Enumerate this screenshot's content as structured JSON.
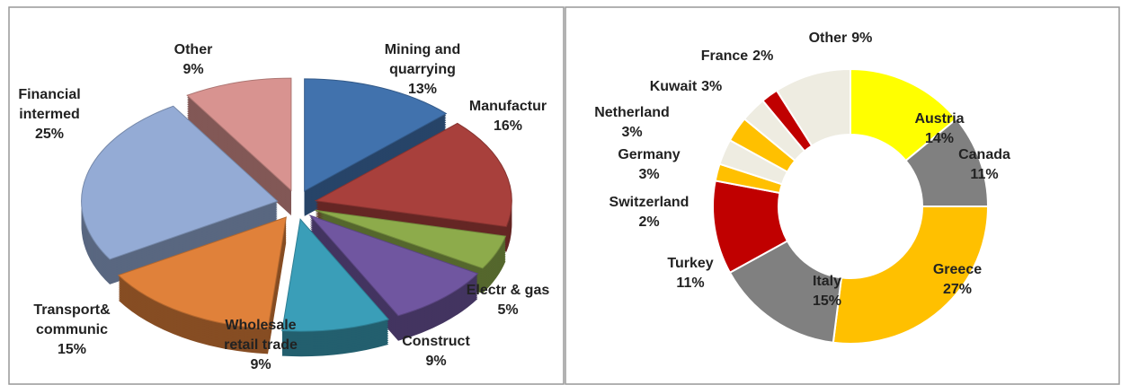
{
  "chart_data": [
    {
      "type": "pie3d",
      "categories": [
        "Mining and quarrying",
        "Manufactur",
        "Electr & gas",
        "Construct",
        "Wholesale retail trade",
        "Transport& communic",
        "Financial intermed",
        "Other"
      ],
      "values": [
        13,
        16,
        5,
        9,
        9,
        15,
        25,
        9
      ],
      "value_labels": [
        "13%",
        "16%",
        "5%",
        "9%",
        "9%",
        "15%",
        "25%",
        "9%"
      ],
      "colors": [
        "#4172ad",
        "#a8403c",
        "#8dab4b",
        "#7056a0",
        "#3a9eb8",
        "#e0813a",
        "#94abd5",
        "#d89390"
      ]
    },
    {
      "type": "doughnut",
      "categories": [
        "Austria",
        "Canada",
        "Greece",
        "Italy",
        "Turkey",
        "Switzerland",
        "Germany",
        "Netherland",
        "Kuwait",
        "France",
        "Other"
      ],
      "values": [
        14,
        11,
        27,
        15,
        11,
        2,
        3,
        3,
        3,
        2,
        9
      ],
      "value_labels": [
        "14%",
        "11%",
        "27%",
        "15%",
        "11%",
        "2%",
        "3%",
        "3%",
        "3%",
        "2%",
        "9%"
      ],
      "colors": [
        "#ffff00",
        "#808080",
        "#ffc000",
        "#808080",
        "#c00000",
        "#ffc000",
        "#eeece1",
        "#ffc000",
        "#eeece1",
        "#c00000",
        "#eeece1"
      ]
    }
  ]
}
